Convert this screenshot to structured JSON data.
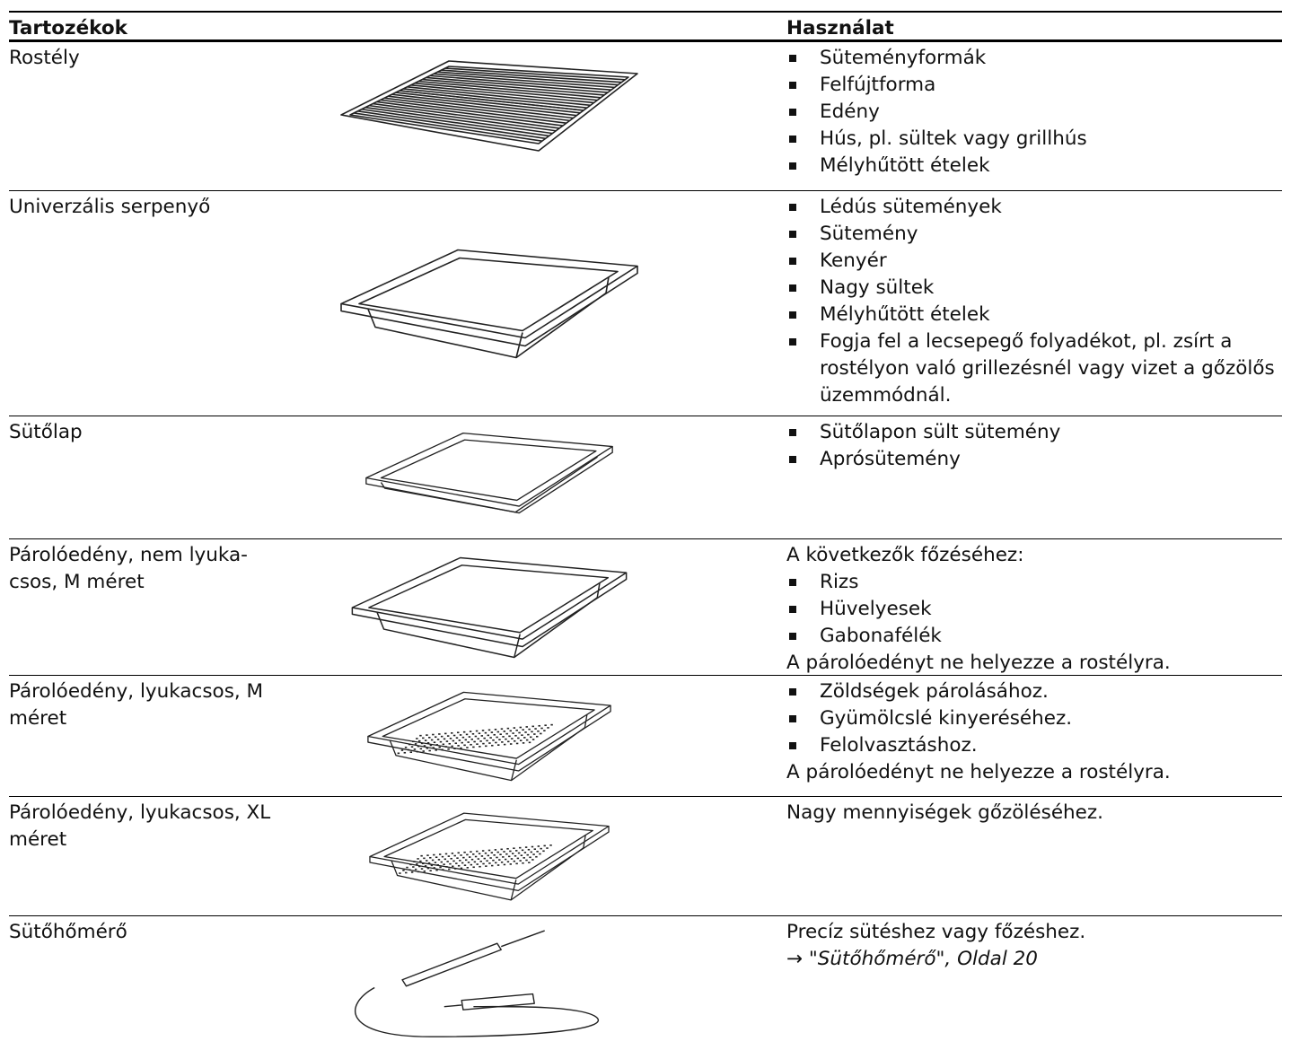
{
  "header": {
    "columns": [
      "Tartozékok",
      "Használat"
    ]
  },
  "rows": [
    {
      "name": [
        "Rostély"
      ],
      "usage": [
        {
          "items": [
            "Süteményformák",
            "Felfújtforma",
            "Edény",
            "Hús, pl. sültek vagy grillhús",
            "Mélyhűtött ételek"
          ]
        }
      ]
    },
    {
      "name": [
        "Univerzális serpenyő"
      ],
      "usage": [
        {
          "items": [
            "Lédús sütemények",
            "Sütemény",
            "Kenyér",
            "Nagy sültek",
            "Mélyhűtött ételek",
            "Fogja fel a lecsepegő folyadékot, pl. zsírt a rostélyon való grillezésnél vagy vizet a gőzölős üzemmódnál."
          ]
        }
      ]
    },
    {
      "name": [
        "Sütőlap"
      ],
      "usage": [
        {
          "items": [
            "Sütőlapon sült sütemény",
            "Aprósütemény"
          ]
        }
      ]
    },
    {
      "name": [
        "Párolóedény, nem lyuka-",
        "csos, M méret"
      ],
      "usage": [
        {
          "text": "A következők főzéséhez:"
        },
        {
          "items": [
            "Rizs",
            "Hüvelyesek",
            "Gabonafélék"
          ]
        },
        {
          "text": "A párolóedényt ne helyezze a rostélyra."
        }
      ]
    },
    {
      "name": [
        "Párolóedény, lyukacsos, M",
        "méret"
      ],
      "usage": [
        {
          "items": [
            "Zöldségek párolásához.",
            "Gyümölcslé kinyeréséhez.",
            "Felolvasztáshoz."
          ]
        },
        {
          "text": "A párolóedényt ne helyezze a rostélyra."
        }
      ]
    },
    {
      "name": [
        "Párolóedény, lyukacsos, XL",
        "méret"
      ],
      "usage": [
        {
          "text": "Nagy mennyiségek gőzöléséhez."
        }
      ]
    },
    {
      "name": [
        "Sütőhőmérő"
      ],
      "usage": [
        {
          "text": "Precíz sütéshez vagy főzéshez."
        },
        {
          "link": "→ \"Sütőhőmérő\", Oldal 20"
        }
      ]
    }
  ]
}
